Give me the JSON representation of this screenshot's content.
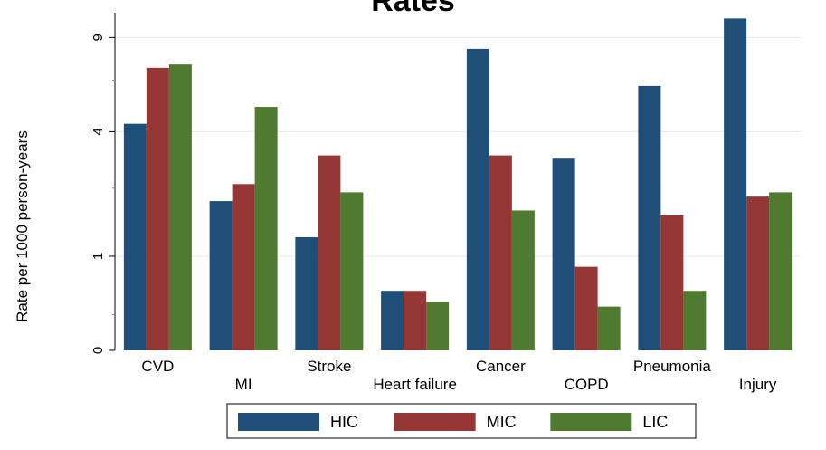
{
  "chart_data": {
    "type": "bar",
    "title": "Rates",
    "ylabel": "Rate per 1000 person-years",
    "xlabel": "",
    "yscale": "log",
    "yticks": [
      0,
      1,
      4,
      9
    ],
    "ylim": [
      0,
      11
    ],
    "categories": [
      "CVD",
      "MI",
      "Stroke",
      "Heart failure",
      "Cancer",
      "COPD",
      "Pneumonia",
      "Injury"
    ],
    "series": [
      {
        "name": "HIC",
        "color": "#1f4e79",
        "values": [
          4.3,
          2.0,
          1.3,
          0.55,
          8.2,
          3.1,
          6.0,
          10.5
        ]
      },
      {
        "name": "MIC",
        "color": "#953735",
        "values": [
          7.0,
          2.4,
          3.2,
          0.55,
          3.2,
          0.85,
          1.7,
          2.1
        ]
      },
      {
        "name": "LIC",
        "color": "#4f7a2f",
        "values": [
          7.2,
          5.0,
          2.2,
          0.43,
          1.8,
          0.38,
          0.55,
          2.2
        ]
      }
    ],
    "grid": true,
    "legend_position": "bottom"
  }
}
